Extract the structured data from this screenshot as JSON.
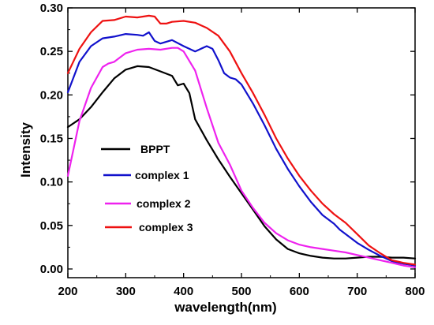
{
  "chart_data": {
    "type": "line",
    "title": "",
    "xlabel": "wavelength(nm)",
    "ylabel": "Intensity",
    "xlim": [
      200,
      800
    ],
    "ylim": [
      -0.01,
      0.3
    ],
    "x_ticks": [
      200,
      300,
      400,
      500,
      600,
      700,
      800
    ],
    "y_ticks": [
      0.0,
      0.05,
      0.1,
      0.15,
      0.2,
      0.25,
      0.3
    ],
    "y_tick_labels": [
      "0.00",
      "0.05",
      "0.10",
      "0.15",
      "0.20",
      "0.25",
      "0.30"
    ],
    "grid": false,
    "legend_position": "center-left",
    "series": [
      {
        "name": "BPPT",
        "color": "#000000",
        "x": [
          200,
          220,
          240,
          260,
          280,
          300,
          320,
          340,
          360,
          380,
          390,
          400,
          410,
          420,
          440,
          460,
          480,
          500,
          520,
          540,
          560,
          580,
          600,
          620,
          640,
          660,
          680,
          700,
          720,
          740,
          760,
          780,
          800
        ],
        "y": [
          0.163,
          0.172,
          0.186,
          0.203,
          0.219,
          0.229,
          0.233,
          0.232,
          0.227,
          0.222,
          0.211,
          0.213,
          0.202,
          0.172,
          0.148,
          0.126,
          0.106,
          0.087,
          0.068,
          0.049,
          0.034,
          0.023,
          0.018,
          0.015,
          0.013,
          0.012,
          0.012,
          0.013,
          0.014,
          0.014,
          0.013,
          0.013,
          0.012
        ]
      },
      {
        "name": "complex 1",
        "color": "#1111cc",
        "x": [
          200,
          220,
          240,
          260,
          280,
          300,
          320,
          330,
          340,
          350,
          360,
          380,
          400,
          420,
          440,
          450,
          460,
          470,
          480,
          490,
          500,
          520,
          540,
          560,
          580,
          600,
          620,
          640,
          660,
          670,
          680,
          700,
          720,
          740,
          760,
          780,
          800
        ],
        "y": [
          0.203,
          0.238,
          0.256,
          0.265,
          0.267,
          0.27,
          0.269,
          0.268,
          0.272,
          0.262,
          0.259,
          0.263,
          0.256,
          0.25,
          0.256,
          0.253,
          0.24,
          0.225,
          0.22,
          0.218,
          0.212,
          0.19,
          0.165,
          0.138,
          0.115,
          0.095,
          0.077,
          0.062,
          0.052,
          0.045,
          0.04,
          0.03,
          0.022,
          0.015,
          0.009,
          0.006,
          0.004
        ]
      },
      {
        "name": "complex 2",
        "color": "#ee22ee",
        "x": [
          200,
          220,
          240,
          260,
          270,
          280,
          300,
          320,
          340,
          360,
          380,
          390,
          400,
          420,
          440,
          460,
          480,
          500,
          520,
          540,
          560,
          580,
          600,
          620,
          640,
          660,
          680,
          700,
          720,
          740,
          760,
          780,
          800
        ],
        "y": [
          0.107,
          0.17,
          0.208,
          0.232,
          0.236,
          0.238,
          0.248,
          0.252,
          0.253,
          0.252,
          0.254,
          0.254,
          0.25,
          0.228,
          0.185,
          0.145,
          0.12,
          0.09,
          0.07,
          0.053,
          0.041,
          0.033,
          0.028,
          0.025,
          0.023,
          0.021,
          0.019,
          0.016,
          0.013,
          0.01,
          0.007,
          0.004,
          0.002
        ]
      },
      {
        "name": "complex 3",
        "color": "#ee1111",
        "x": [
          200,
          220,
          240,
          260,
          280,
          300,
          320,
          340,
          350,
          360,
          370,
          380,
          400,
          420,
          440,
          460,
          480,
          500,
          520,
          540,
          560,
          580,
          600,
          620,
          640,
          660,
          680,
          700,
          720,
          740,
          760,
          780,
          800
        ],
        "y": [
          0.225,
          0.253,
          0.272,
          0.285,
          0.286,
          0.29,
          0.289,
          0.291,
          0.29,
          0.282,
          0.282,
          0.284,
          0.285,
          0.283,
          0.277,
          0.268,
          0.25,
          0.225,
          0.202,
          0.177,
          0.15,
          0.127,
          0.107,
          0.09,
          0.075,
          0.063,
          0.053,
          0.04,
          0.027,
          0.018,
          0.01,
          0.007,
          0.005
        ]
      }
    ]
  }
}
